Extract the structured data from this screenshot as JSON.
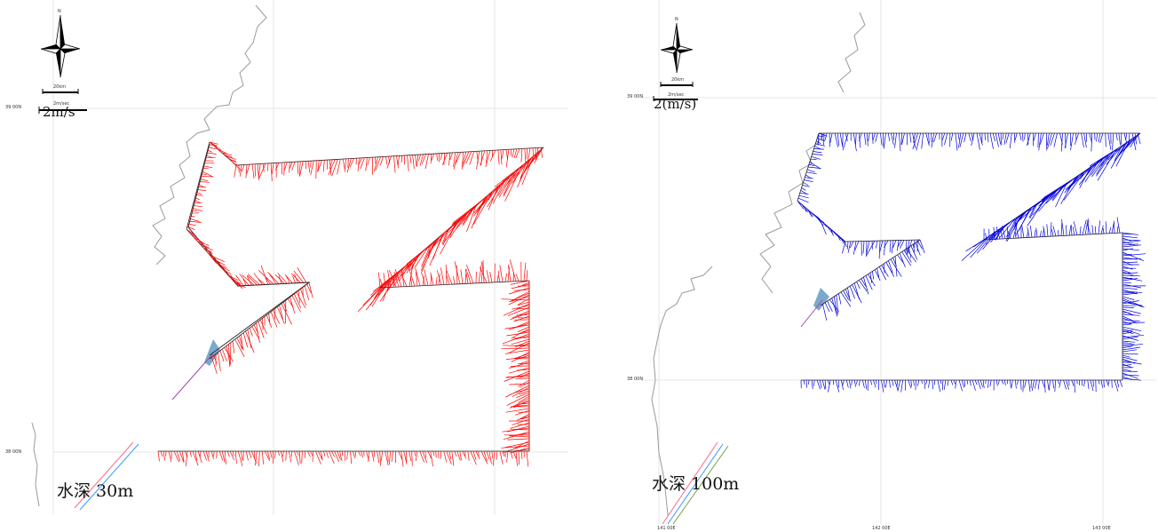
{
  "panels": [
    {
      "id": "left",
      "vector_color": "#ff0000",
      "north_label": "N",
      "scale_distance": "20km",
      "scale_speed": "2m/sec",
      "speed_legend": "2m/s",
      "lat_label_top": "39 00N",
      "lat_label_bottom": "38 00N",
      "depth_label": "水深 30m"
    },
    {
      "id": "right",
      "vector_color": "#0000dd",
      "north_label": "N",
      "scale_distance": "20km",
      "scale_speed": "2m/sec",
      "speed_legend": "2(m/s)",
      "lat_label_top": "39 00N",
      "lat_label_bottom": "38 00N",
      "lon_labels": [
        "141 00E",
        "142 00E",
        "143 00E"
      ],
      "depth_label": "水深 100m"
    }
  ],
  "colors": {
    "grid": "#e6e6e6",
    "coastline": "#9a9a9a",
    "ship_track": "#000000",
    "site_marker": "#6f9fc8",
    "diagonal_line_a": "#ff6688",
    "diagonal_line_b": "#3399ff"
  }
}
